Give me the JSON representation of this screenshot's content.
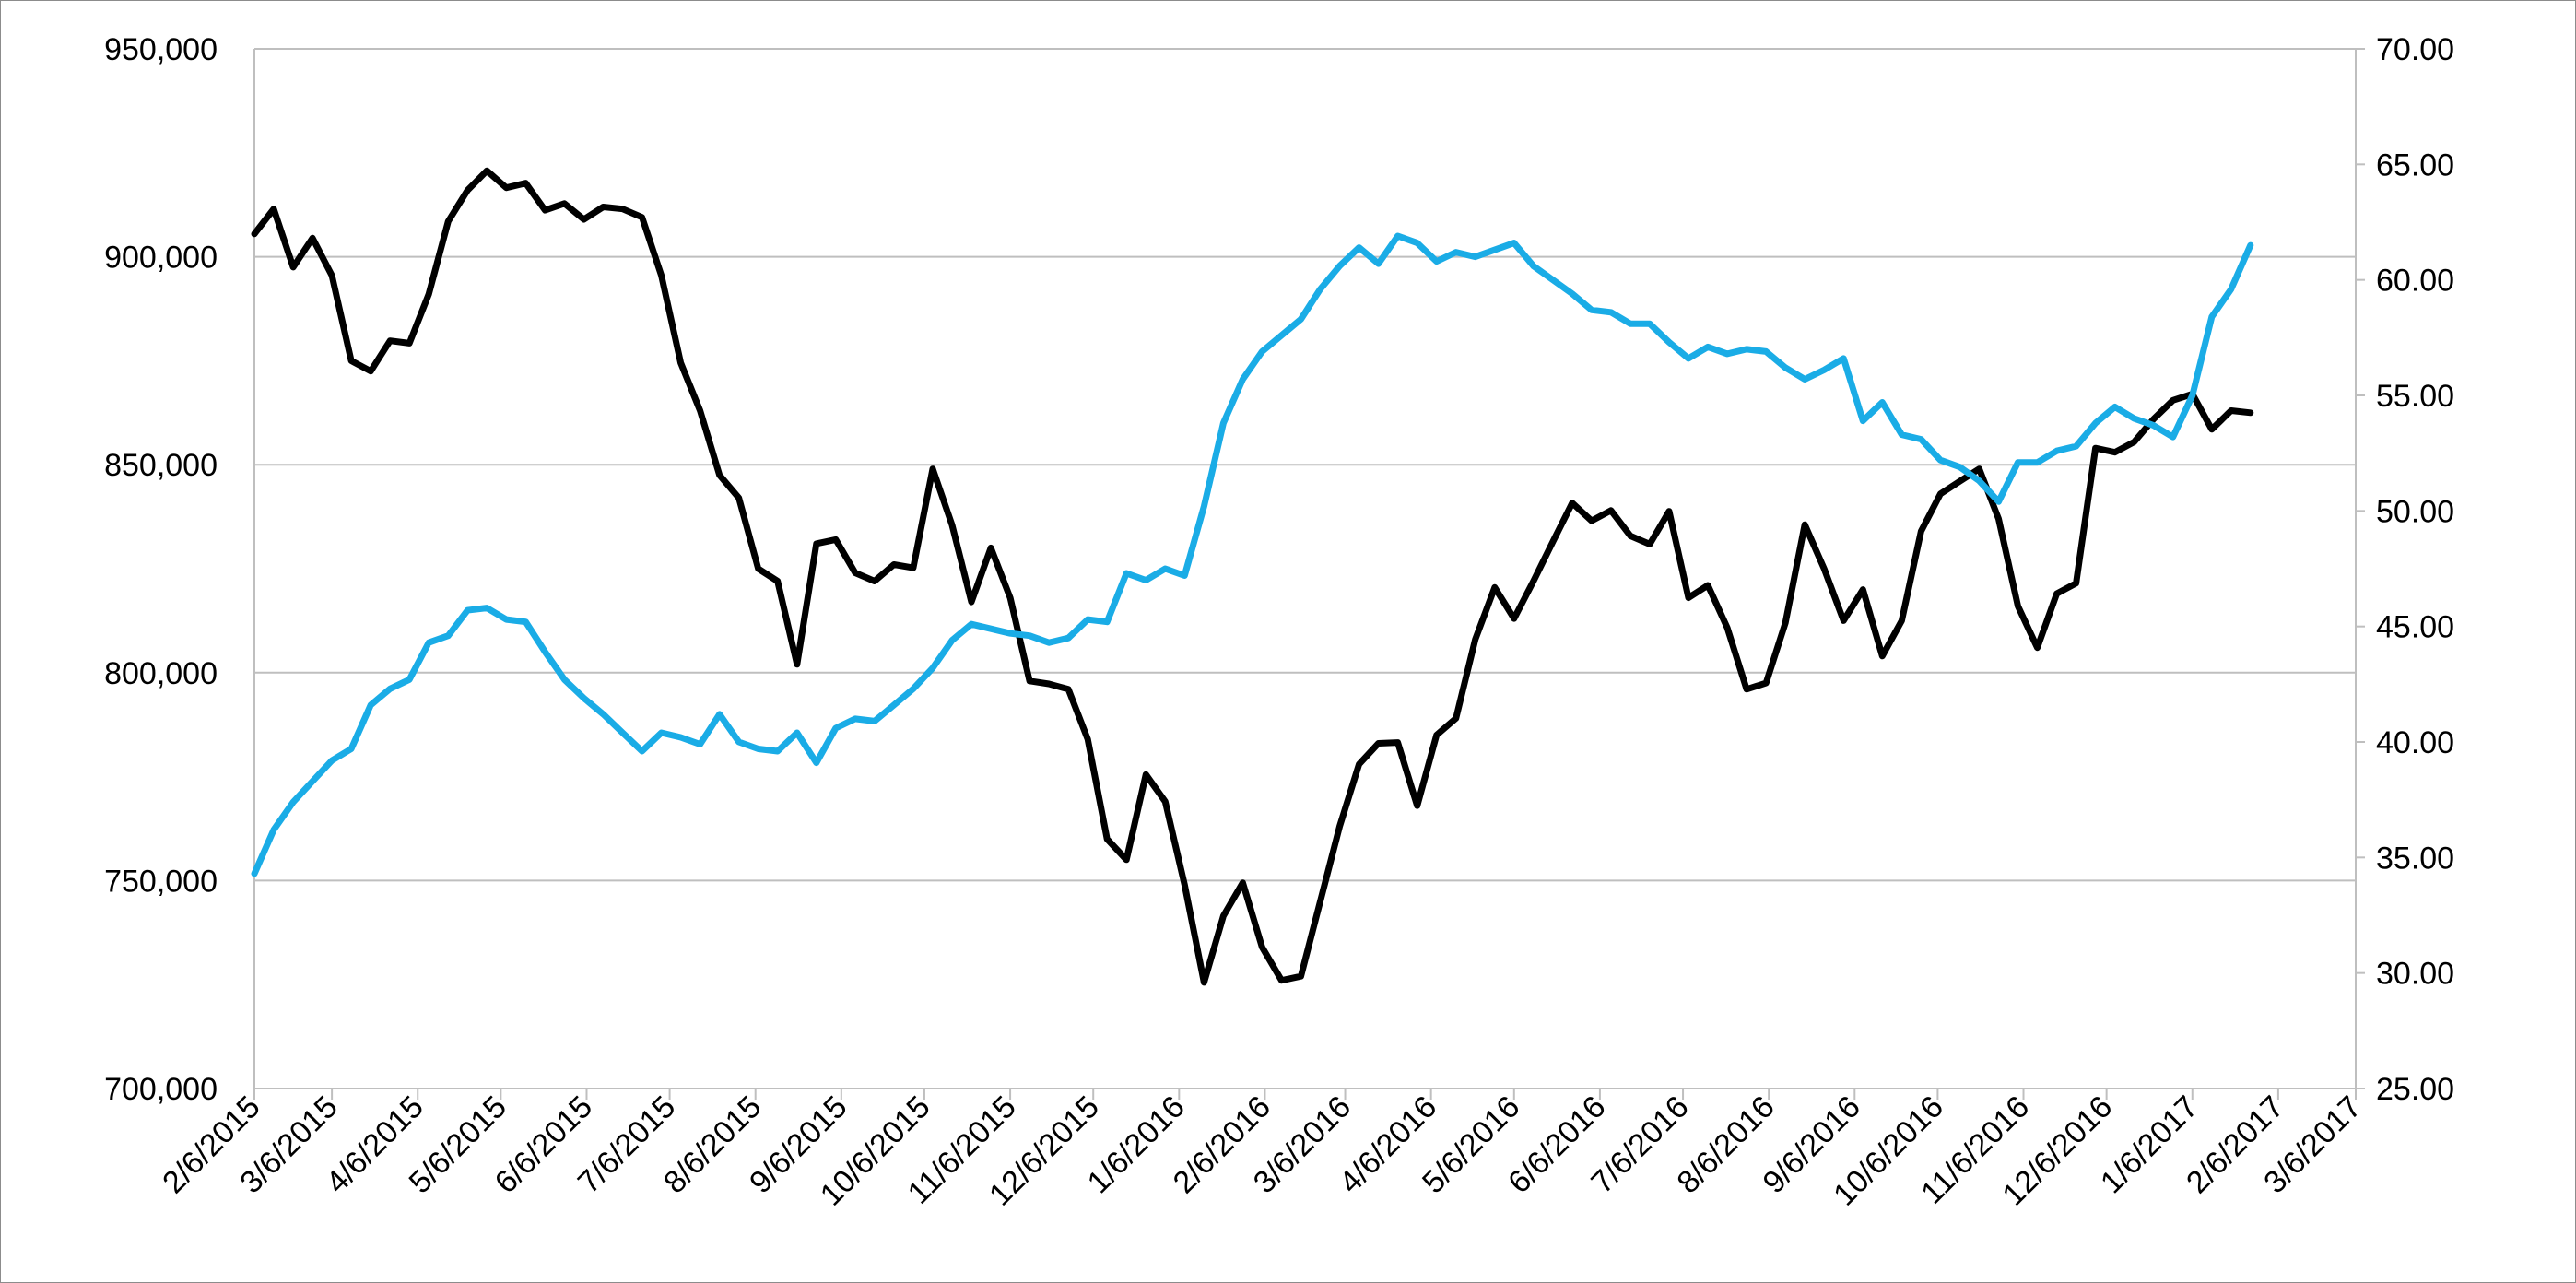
{
  "chart_data": {
    "type": "line",
    "title": "",
    "xlabel": "",
    "ylabel": "",
    "ylabel_right": "",
    "grid": true,
    "legend": "none",
    "x_ticks": [
      "2/6/2015",
      "3/6/2015",
      "4/6/2015",
      "5/6/2015",
      "6/6/2015",
      "7/6/2015",
      "8/6/2015",
      "9/6/2015",
      "10/6/2015",
      "11/6/2015",
      "12/6/2015",
      "1/6/2016",
      "2/6/2016",
      "3/6/2016",
      "4/6/2016",
      "5/6/2016",
      "6/6/2016",
      "7/6/2016",
      "8/6/2016",
      "9/6/2016",
      "10/6/2016",
      "11/6/2016",
      "12/6/2016",
      "1/6/2017",
      "2/6/2017",
      "3/6/2017"
    ],
    "x_range": [
      "2015-02-06",
      "2017-03-06"
    ],
    "y_left": {
      "ylim": [
        700000,
        950000
      ],
      "ticks": [
        700000,
        750000,
        800000,
        850000,
        900000,
        950000
      ],
      "tick_labels": [
        "700,000",
        "750,000",
        "800,000",
        "850,000",
        "900,000",
        "950,000"
      ]
    },
    "y_right": {
      "ylim": [
        25,
        70
      ],
      "ticks": [
        25,
        30,
        35,
        40,
        45,
        50,
        55,
        60,
        65,
        70
      ],
      "tick_labels": [
        "25.00",
        "30.00",
        "35.00",
        "40.00",
        "45.00",
        "50.00",
        "55.00",
        "60.00",
        "65.00",
        "70.00"
      ]
    },
    "series": [
      {
        "axis": "left",
        "color": "#000000",
        "x": [
          "2015-02-06",
          "2015-02-13",
          "2015-02-20",
          "2015-02-27",
          "2015-03-06",
          "2015-03-13",
          "2015-03-20",
          "2015-03-27",
          "2015-04-03",
          "2015-04-10",
          "2015-04-17",
          "2015-04-24",
          "2015-05-01",
          "2015-05-08",
          "2015-05-15",
          "2015-05-22",
          "2015-05-29",
          "2015-06-05",
          "2015-06-12",
          "2015-06-19",
          "2015-06-26",
          "2015-07-03",
          "2015-07-10",
          "2015-07-17",
          "2015-07-24",
          "2015-07-31",
          "2015-08-07",
          "2015-08-14",
          "2015-08-21",
          "2015-08-28",
          "2015-09-04",
          "2015-09-11",
          "2015-09-18",
          "2015-09-25",
          "2015-10-02",
          "2015-10-09",
          "2015-10-16",
          "2015-10-23",
          "2015-10-30",
          "2015-11-06",
          "2015-11-13",
          "2015-11-20",
          "2015-11-27",
          "2015-12-04",
          "2015-12-11",
          "2015-12-18",
          "2015-12-25",
          "2016-01-01",
          "2016-01-08",
          "2016-01-15",
          "2016-01-22",
          "2016-01-29",
          "2016-02-05",
          "2016-02-12",
          "2016-02-19",
          "2016-02-26",
          "2016-03-04",
          "2016-03-11",
          "2016-03-18",
          "2016-03-25",
          "2016-04-01",
          "2016-04-08",
          "2016-04-15",
          "2016-04-22",
          "2016-04-29",
          "2016-05-06",
          "2016-05-13",
          "2016-05-20",
          "2016-05-27",
          "2016-06-03",
          "2016-06-10",
          "2016-06-17",
          "2016-06-24",
          "2016-07-01",
          "2016-07-08",
          "2016-07-15",
          "2016-07-22",
          "2016-07-29",
          "2016-08-05",
          "2016-08-12",
          "2016-08-19",
          "2016-08-26",
          "2016-09-02",
          "2016-09-09",
          "2016-09-16",
          "2016-09-23",
          "2016-09-30",
          "2016-10-07",
          "2016-10-14",
          "2016-10-21",
          "2016-10-28",
          "2016-11-04",
          "2016-11-11",
          "2016-11-18",
          "2016-11-25",
          "2016-12-02",
          "2016-12-09",
          "2016-12-16",
          "2016-12-23",
          "2016-12-30",
          "2017-01-06",
          "2017-01-13",
          "2017-01-20",
          "2017-01-27"
        ],
        "values": [
          905500,
          911500,
          897500,
          904500,
          895500,
          875000,
          872500,
          879800,
          879200,
          891000,
          908500,
          916000,
          920700,
          916600,
          917700,
          911200,
          912800,
          909000,
          912000,
          911500,
          909500,
          895500,
          874500,
          863000,
          847500,
          842000,
          825000,
          822000,
          802000,
          831000,
          832000,
          824000,
          822000,
          826000,
          825200,
          849000,
          835500,
          817000,
          830000,
          818000,
          798000,
          797300,
          796000,
          784000,
          760000,
          755000,
          775500,
          769000,
          749000,
          725500,
          741500,
          749500,
          734000,
          726000,
          727000,
          745000,
          763000,
          778000,
          783000,
          783200,
          768000,
          785000,
          789000,
          808000,
          820500,
          813000,
          822000,
          831500,
          840800,
          836500,
          839000,
          832900,
          830900,
          838800,
          818000,
          821000,
          810800,
          796000,
          797500,
          812000,
          835600,
          825000,
          812500,
          820000,
          804000,
          812500,
          834000,
          843000,
          846000,
          849000,
          837000,
          816000,
          806000,
          819000,
          821500,
          854000,
          853000,
          855500,
          861000,
          865500,
          867000,
          858500,
          863000,
          862500
        ]
      },
      {
        "axis": "right",
        "color": "#1aace6",
        "x": [
          "2015-02-06",
          "2015-02-13",
          "2015-02-20",
          "2015-02-27",
          "2015-03-06",
          "2015-03-13",
          "2015-03-20",
          "2015-03-27",
          "2015-04-03",
          "2015-04-10",
          "2015-04-17",
          "2015-04-24",
          "2015-05-01",
          "2015-05-08",
          "2015-05-15",
          "2015-05-22",
          "2015-05-29",
          "2015-06-05",
          "2015-06-12",
          "2015-06-19",
          "2015-06-26",
          "2015-07-03",
          "2015-07-10",
          "2015-07-17",
          "2015-07-24",
          "2015-07-31",
          "2015-08-07",
          "2015-08-14",
          "2015-08-21",
          "2015-08-28",
          "2015-09-04",
          "2015-09-11",
          "2015-09-18",
          "2015-09-25",
          "2015-10-02",
          "2015-10-09",
          "2015-10-16",
          "2015-10-23",
          "2015-10-30",
          "2015-11-06",
          "2015-11-13",
          "2015-11-20",
          "2015-11-27",
          "2015-12-04",
          "2015-12-11",
          "2015-12-18",
          "2015-12-25",
          "2016-01-01",
          "2016-01-08",
          "2016-01-15",
          "2016-01-22",
          "2016-01-29",
          "2016-02-05",
          "2016-02-12",
          "2016-02-19",
          "2016-02-26",
          "2016-03-04",
          "2016-03-11",
          "2016-03-18",
          "2016-03-25",
          "2016-04-01",
          "2016-04-08",
          "2016-04-15",
          "2016-04-22",
          "2016-04-29",
          "2016-05-06",
          "2016-05-13",
          "2016-05-20",
          "2016-05-27",
          "2016-06-03",
          "2016-06-10",
          "2016-06-17",
          "2016-06-24",
          "2016-07-01",
          "2016-07-08",
          "2016-07-15",
          "2016-07-22",
          "2016-07-29",
          "2016-08-05",
          "2016-08-12",
          "2016-08-19",
          "2016-08-26",
          "2016-09-02",
          "2016-09-09",
          "2016-09-16",
          "2016-09-23",
          "2016-09-30",
          "2016-10-07",
          "2016-10-14",
          "2016-10-21",
          "2016-10-28",
          "2016-11-04",
          "2016-11-11",
          "2016-11-18",
          "2016-11-25",
          "2016-12-02",
          "2016-12-09",
          "2016-12-16",
          "2016-12-23",
          "2016-12-30",
          "2017-01-06",
          "2017-01-13",
          "2017-01-20",
          "2017-01-27"
        ],
        "values": [
          34.3,
          36.2,
          37.4,
          38.3,
          39.2,
          39.7,
          41.6,
          42.3,
          42.7,
          44.3,
          44.6,
          45.7,
          45.8,
          45.3,
          45.2,
          43.9,
          42.7,
          41.9,
          41.2,
          40.4,
          39.6,
          40.4,
          40.2,
          39.9,
          41.2,
          40.0,
          39.7,
          39.6,
          40.4,
          39.1,
          40.6,
          41.0,
          40.9,
          41.6,
          42.3,
          43.2,
          44.4,
          45.1,
          44.9,
          44.7,
          44.6,
          44.3,
          44.5,
          45.3,
          45.2,
          47.3,
          47.0,
          47.5,
          47.2,
          50.2,
          53.8,
          55.7,
          56.9,
          57.6,
          58.3,
          59.6,
          60.6,
          61.4,
          60.7,
          61.9,
          61.6,
          60.8,
          61.2,
          61.0,
          61.3,
          61.6,
          60.6,
          60.0,
          59.4,
          58.7,
          58.6,
          58.1,
          58.1,
          57.3,
          56.6,
          57.1,
          56.8,
          57.0,
          56.9,
          56.2,
          55.7,
          56.1,
          56.6,
          53.9,
          54.7,
          53.3,
          53.1,
          52.2,
          51.9,
          51.3,
          50.4,
          52.1,
          52.1,
          52.6,
          52.8,
          53.8,
          54.5,
          54.0,
          53.7,
          53.2,
          55.0,
          58.4,
          59.6,
          61.5
        ]
      }
    ]
  }
}
